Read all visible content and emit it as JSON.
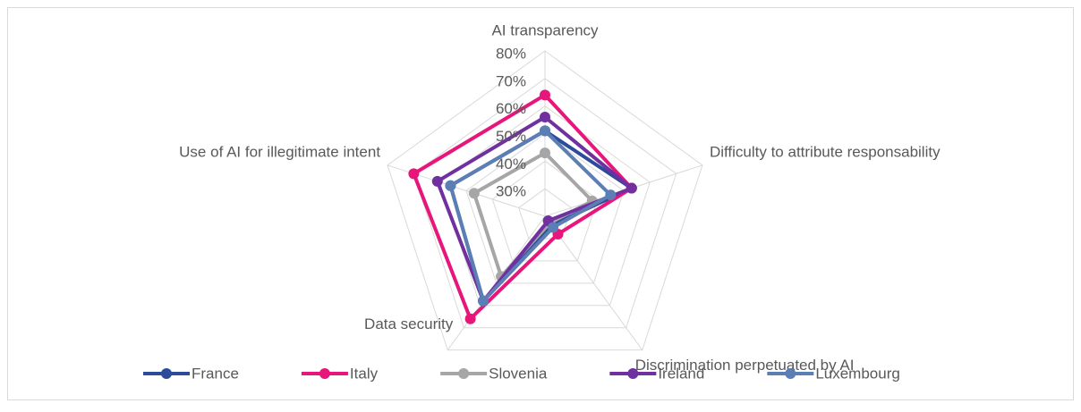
{
  "chart_data": {
    "type": "radar",
    "categories": [
      "AI transparency",
      "Difficulty to attribute responsability",
      "Discrimination perpetuated by AI",
      "Data security",
      "Use of AI for illegitimate intent"
    ],
    "ylim": [
      20,
      80
    ],
    "yticks": [
      {
        "value": 30,
        "label": "30%"
      },
      {
        "value": 40,
        "label": "40%"
      },
      {
        "value": 50,
        "label": "50%"
      },
      {
        "value": 60,
        "label": "60%"
      },
      {
        "value": 70,
        "label": "70%"
      },
      {
        "value": 80,
        "label": "80%"
      }
    ],
    "grid": true,
    "legend": "bottom",
    "series": [
      {
        "name": "France",
        "color": "#2e4b9b",
        "values": [
          51,
          53,
          24,
          58,
          56
        ]
      },
      {
        "name": "Italy",
        "color": "#e8157a",
        "values": [
          64,
          53,
          28,
          66,
          70
        ]
      },
      {
        "name": "Slovenia",
        "color": "#a6a6a6",
        "values": [
          43,
          38,
          23,
          47,
          47
        ]
      },
      {
        "name": "Ireland",
        "color": "#7030a0",
        "values": [
          56,
          53,
          22,
          58,
          61
        ]
      },
      {
        "name": "Luxembourg",
        "color": "#5b7fb5",
        "values": [
          51,
          45,
          25,
          58,
          56
        ]
      }
    ]
  }
}
